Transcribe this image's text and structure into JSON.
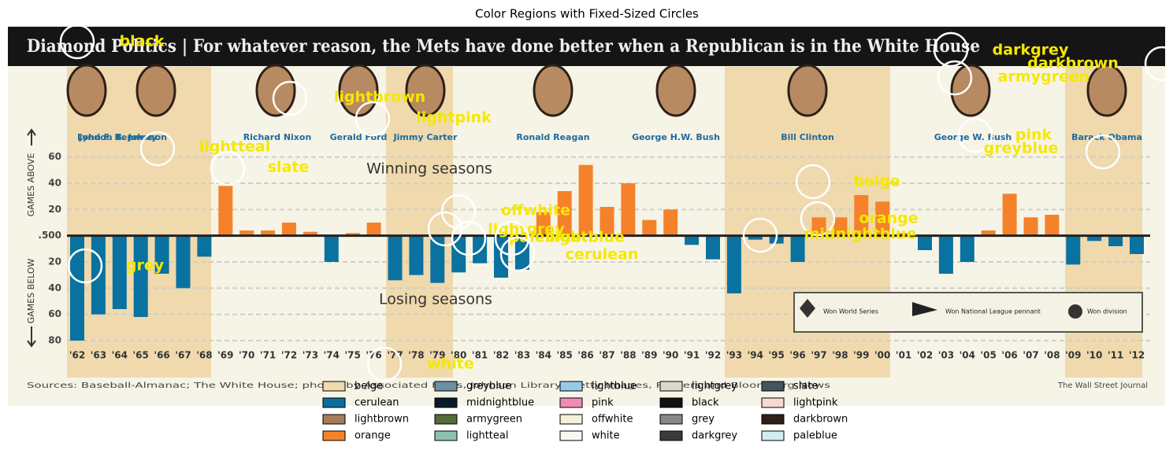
{
  "title": "Color Regions with Fixed-Sized Circles",
  "chart_data": {
    "type": "bar",
    "title": "Diamond Politics | For whatever reason, the Mets have done better when a Republican is in the White House",
    "presidents": [
      "John F. Kennedy",
      "Lyndon B. Johnson",
      "Richard Nixon",
      "Gerald Ford",
      "Jimmy Carter",
      "Ronald Reagan",
      "George H.W. Bush",
      "Bill Clinton",
      "George W. Bush",
      "Barack Obama"
    ],
    "y_label_above": "GAMES ABOVE",
    "y_label_below": "GAMES BELOW",
    "annotations": [
      "Winning seasons",
      "Losing seasons"
    ],
    "key": [
      "Won World Series",
      "Won National League pennant",
      "Won division"
    ],
    "source": "Sources: Baseball-Almanac; The White House; photos by Associated Press, Johnson Library, Getty Images, Reuters and Bloomberg News",
    "credit": "The Wall Street Journal",
    "categories": [
      "'62",
      "'63",
      "'64",
      "'65",
      "'66",
      "'67",
      "'68",
      "'69",
      "'70",
      "'71",
      "'72",
      "'73",
      "'74",
      "'75",
      "'76",
      "'77",
      "'78",
      "'79",
      "'80",
      "'81",
      "'82",
      "'83",
      "'84",
      "'85",
      "'86",
      "'87",
      "'88",
      "'89",
      "'90",
      "'91",
      "'92",
      "'93",
      "'94",
      "'95",
      "'96",
      "'97",
      "'98",
      "'99",
      "'00",
      "'01",
      "'02",
      "'03",
      "'04",
      "'05",
      "'06",
      "'07",
      "'08",
      "'09",
      "'10",
      "'11",
      "'12"
    ],
    "values": [
      -80,
      -60,
      -56,
      -62,
      -29,
      -40,
      -16,
      38,
      4,
      4,
      10,
      3,
      -20,
      2,
      10,
      -34,
      -30,
      -36,
      -28,
      -21,
      -32,
      -26,
      18,
      34,
      54,
      22,
      40,
      12,
      20,
      -7,
      -18,
      -44,
      -3,
      -6,
      -20,
      14,
      14,
      31,
      26,
      2,
      -11,
      -29,
      -20,
      4,
      32,
      14,
      16,
      -22,
      -4,
      -8,
      -14
    ],
    "positive_color": "#f5822a",
    "negative_color": "#0a72a0",
    "ylim": [
      -80,
      70
    ],
    "yticks": [
      60,
      40,
      20,
      {
        "value": 0,
        "label": ".500"
      },
      {
        "value": -20,
        "label": "20"
      },
      {
        "value": -40,
        "label": "40"
      },
      {
        "value": -60,
        "label": "60"
      },
      {
        "value": -80,
        "label": "80"
      }
    ],
    "grid": true
  },
  "regions": [
    "black",
    "darkgrey",
    "darkbrown",
    "armygreen",
    "lightbrown",
    "lightpink",
    "pink",
    "greyblue",
    "lightteal",
    "slate",
    "beige",
    "offwhite",
    "lightgrey",
    "orange",
    "paleblue",
    "lightblue",
    "midnightblue",
    "cerulean",
    "grey",
    "white"
  ],
  "legend": [
    {
      "name": "beige",
      "color": "#efd9ad"
    },
    {
      "name": "cerulean",
      "color": "#0a6e9c"
    },
    {
      "name": "lightbrown",
      "color": "#a67c5a"
    },
    {
      "name": "orange",
      "color": "#f5822a"
    },
    {
      "name": "greyblue",
      "color": "#6b8fa3"
    },
    {
      "name": "midnightblue",
      "color": "#0a1a2a"
    },
    {
      "name": "armygreen",
      "color": "#556b3a"
    },
    {
      "name": "lightteal",
      "color": "#8fc1b0"
    },
    {
      "name": "lightblue",
      "color": "#99c9e8"
    },
    {
      "name": "pink",
      "color": "#f08cb4"
    },
    {
      "name": "offwhite",
      "color": "#f5f0d8"
    },
    {
      "name": "white",
      "color": "#f8f8f0"
    },
    {
      "name": "lightgrey",
      "color": "#d8d8cc"
    },
    {
      "name": "black",
      "color": "#111111"
    },
    {
      "name": "grey",
      "color": "#888888"
    },
    {
      "name": "darkgrey",
      "color": "#3a3a3a"
    },
    {
      "name": "slate",
      "color": "#445560"
    },
    {
      "name": "lightpink",
      "color": "#f8d8d0"
    },
    {
      "name": "darkbrown",
      "color": "#2e2018"
    },
    {
      "name": "paleblue",
      "color": "#d0eef2"
    }
  ]
}
